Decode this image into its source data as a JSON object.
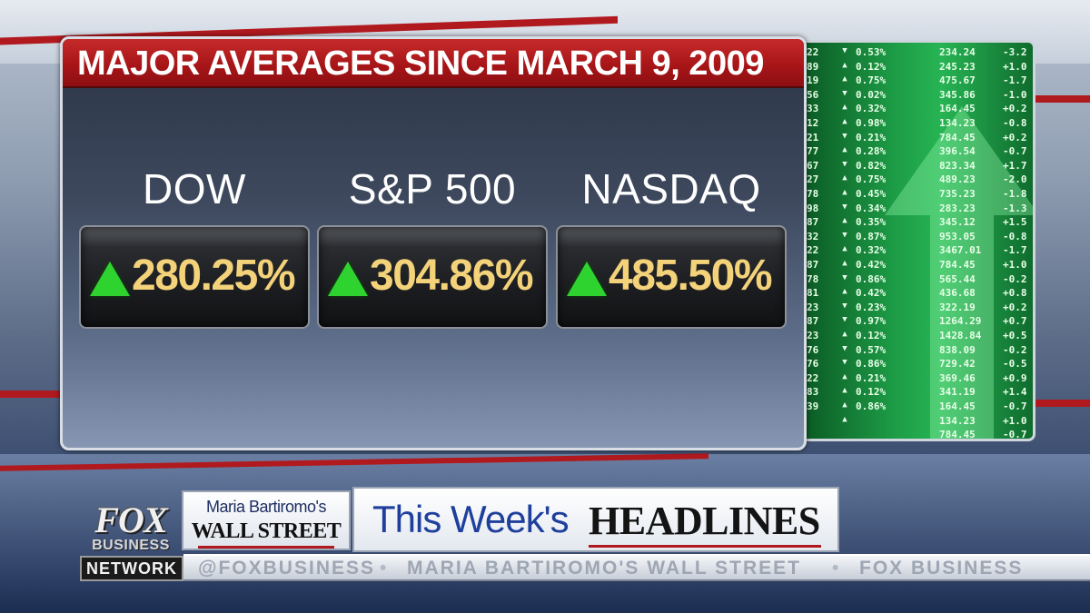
{
  "panel": {
    "title": "MAJOR AVERAGES SINCE MARCH 9, 2009",
    "indices": [
      {
        "label": "DOW",
        "change": "280.25%",
        "direction": "up"
      },
      {
        "label": "S&P 500",
        "change": "304.86%",
        "direction": "up"
      },
      {
        "label": "NASDAQ",
        "change": "485.50%",
        "direction": "up"
      }
    ]
  },
  "board": {
    "rows": [
      {
        "a": "22",
        "dir": "down",
        "p": "0.53%",
        "v": "234.24",
        "c": "-3.2"
      },
      {
        "a": "89",
        "dir": "up",
        "p": "0.12%",
        "v": "245.23",
        "c": "+1.0"
      },
      {
        "a": "19",
        "dir": "up",
        "p": "0.75%",
        "v": "475.67",
        "c": "-1.7"
      },
      {
        "a": "56",
        "dir": "down",
        "p": "0.02%",
        "v": "345.86",
        "c": "-1.0"
      },
      {
        "a": "33",
        "dir": "up",
        "p": "0.32%",
        "v": "164.45",
        "c": "+0.2"
      },
      {
        "a": "12",
        "dir": "up",
        "p": "0.98%",
        "v": "134.23",
        "c": "-0.8"
      },
      {
        "a": "21",
        "dir": "down",
        "p": "0.21%",
        "v": "784.45",
        "c": "+0.2"
      },
      {
        "a": "77",
        "dir": "up",
        "p": "0.28%",
        "v": "396.54",
        "c": "-0.7"
      },
      {
        "a": "67",
        "dir": "down",
        "p": "0.82%",
        "v": "823.34",
        "c": "+1.7"
      },
      {
        "a": "27",
        "dir": "up",
        "p": "0.75%",
        "v": "489.23",
        "c": "-2.0"
      },
      {
        "a": "78",
        "dir": "up",
        "p": "0.45%",
        "v": "735.23",
        "c": "-1.8"
      },
      {
        "a": "98",
        "dir": "down",
        "p": "0.34%",
        "v": "283.23",
        "c": "-1.3"
      },
      {
        "a": "87",
        "dir": "up",
        "p": "0.35%",
        "v": "345.12",
        "c": "+1.5"
      },
      {
        "a": "32",
        "dir": "down",
        "p": "0.87%",
        "v": "953.05",
        "c": "-0.8"
      },
      {
        "a": "22",
        "dir": "up",
        "p": "0.32%",
        "v": "3467.01",
        "c": "-1.7"
      },
      {
        "a": "87",
        "dir": "up",
        "p": "0.42%",
        "v": "784.45",
        "c": "+1.0"
      },
      {
        "a": "78",
        "dir": "down",
        "p": "0.86%",
        "v": "565.44",
        "c": "-0.2"
      },
      {
        "a": "81",
        "dir": "up",
        "p": "0.42%",
        "v": "436.68",
        "c": "+0.8"
      },
      {
        "a": "23",
        "dir": "down",
        "p": "0.23%",
        "v": "322.19",
        "c": "+0.2"
      },
      {
        "a": "87",
        "dir": "down",
        "p": "0.97%",
        "v": "1264.29",
        "c": "+0.7"
      },
      {
        "a": "23",
        "dir": "up",
        "p": "0.12%",
        "v": "1428.84",
        "c": "+0.5"
      },
      {
        "a": "76",
        "dir": "down",
        "p": "0.57%",
        "v": "838.09",
        "c": "-0.2"
      },
      {
        "a": "76",
        "dir": "down",
        "p": "0.86%",
        "v": "729.42",
        "c": "-0.5"
      },
      {
        "a": "22",
        "dir": "up",
        "p": "0.21%",
        "v": "369.46",
        "c": "+0.9"
      },
      {
        "a": "83",
        "dir": "up",
        "p": "0.12%",
        "v": "341.19",
        "c": "+1.4"
      },
      {
        "a": "39",
        "dir": "up",
        "p": "0.86%",
        "v": "164.45",
        "c": "-0.7"
      },
      {
        "a": "",
        "dir": "up",
        "p": "",
        "v": "134.23",
        "c": "+1.0"
      },
      {
        "a": "",
        "dir": "",
        "p": "",
        "v": "784.45",
        "c": "-0.7"
      }
    ]
  },
  "lower_third": {
    "network_logo": "FOX",
    "network_sub": "BUSINESS",
    "network_label": "NETWORK",
    "show_top": "Maria Bartiromo's",
    "show_bottom": "WALL STREET",
    "headline_a": "This Week's",
    "headline_b": "HEADLINES",
    "ticker": [
      "@FOXBUSINESS",
      "MARIA BARTIROMO'S WALL STREET",
      "FOX BUSINESS"
    ],
    "ticker_sep": "•"
  },
  "colors": {
    "title_red": "#a51417",
    "value_gold": "#f3d27a",
    "up_green": "#2fd32f"
  }
}
